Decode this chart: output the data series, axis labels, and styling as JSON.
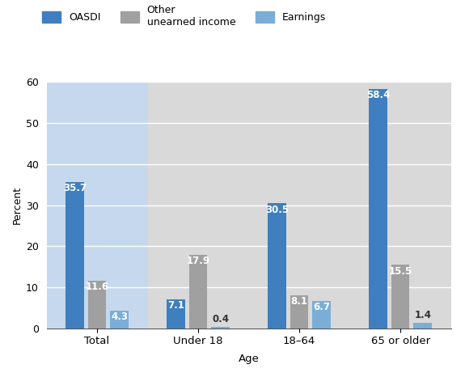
{
  "categories": [
    "Total",
    "Under 18",
    "18–64",
    "65 or older"
  ],
  "series": {
    "OASDI": [
      35.7,
      7.1,
      30.5,
      58.4
    ],
    "Other unearned income": [
      11.6,
      17.9,
      8.1,
      15.5
    ],
    "Earnings": [
      4.3,
      0.4,
      6.7,
      1.4
    ]
  },
  "colors": {
    "OASDI": "#3f7fbf",
    "Other unearned income": "#a0a0a0",
    "Earnings": "#7aaed6"
  },
  "column_bg_colors": [
    "#c5d8ee",
    "#d9d9d9",
    "#d9d9d9",
    "#d9d9d9"
  ],
  "ylabel": "Percent",
  "xlabel": "Age",
  "ylim": [
    0,
    60
  ],
  "yticks": [
    0,
    10,
    20,
    30,
    40,
    50,
    60
  ],
  "legend_labels": [
    "OASDI",
    "Other\nunearned income",
    "Earnings"
  ],
  "legend_colors": [
    "#3f7fbf",
    "#a0a0a0",
    "#7aaed6"
  ],
  "bar_width": 0.18,
  "label_fontsize": 8.5,
  "axis_fontsize": 9.5,
  "legend_fontsize": 9
}
